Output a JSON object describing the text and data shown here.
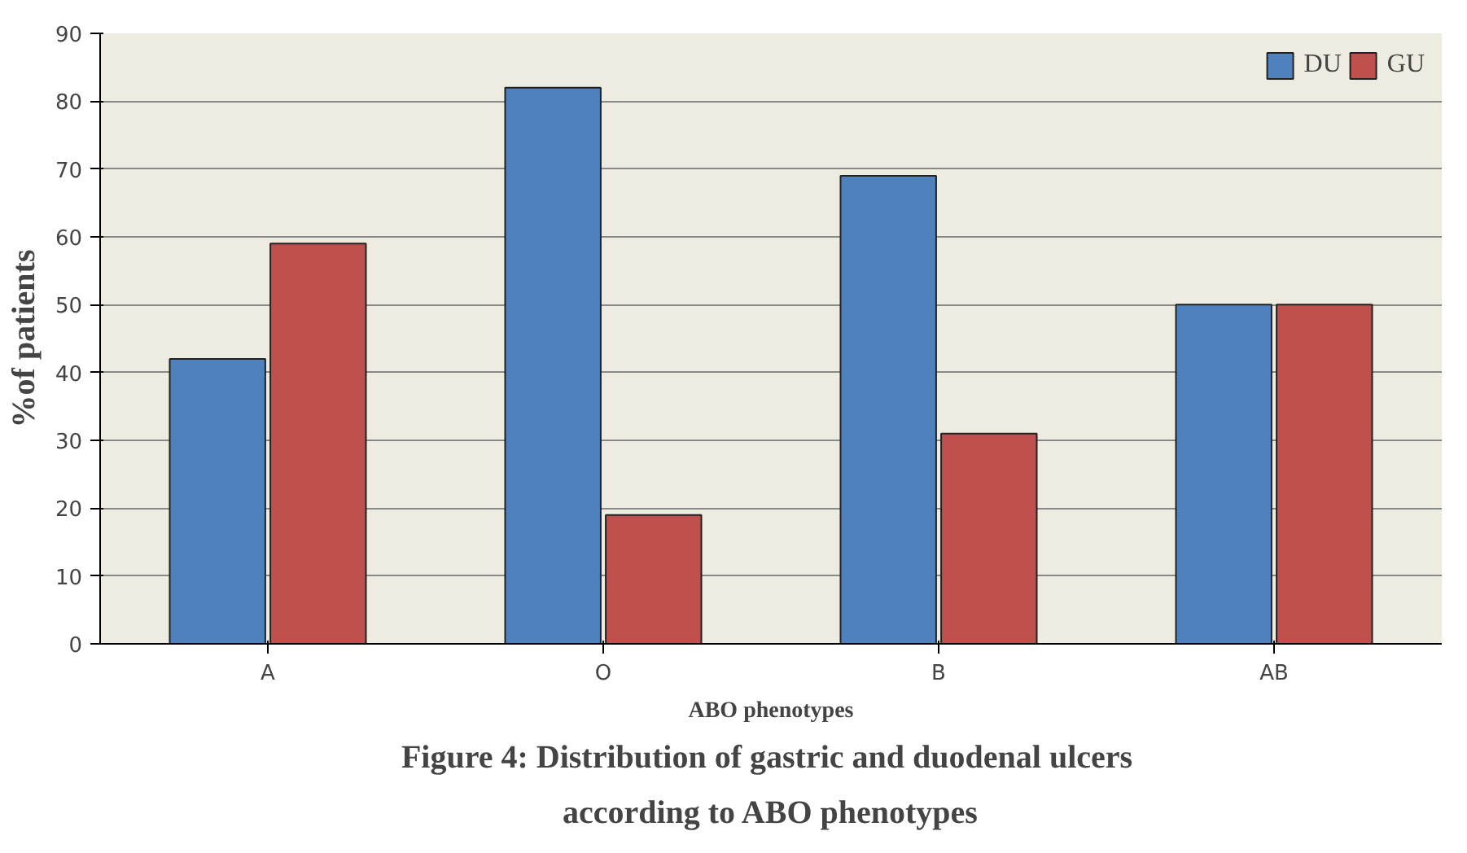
{
  "chart_data": {
    "type": "bar",
    "title": "Figure 4:  Distribution of gastric and duodenal ulcers\naccording to ABO phenotypes",
    "xlabel": "ABO phenotypes",
    "ylabel": "%of patients",
    "categories": [
      "A",
      "O",
      "B",
      "AB"
    ],
    "series": [
      {
        "name": "DU",
        "color": "#4f81bd",
        "values": [
          42,
          82,
          69,
          50
        ]
      },
      {
        "name": "GU",
        "color": "#c0504d",
        "values": [
          59,
          19,
          31,
          50
        ]
      }
    ],
    "ylim": [
      0,
      90
    ],
    "yticks": [
      0,
      10,
      20,
      30,
      40,
      50,
      60,
      70,
      80,
      90
    ],
    "grid": "y",
    "legend": "top right"
  }
}
